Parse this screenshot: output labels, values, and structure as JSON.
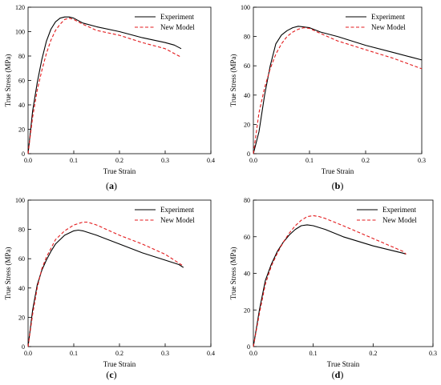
{
  "chart_data": [
    {
      "type": "line",
      "caption_letter": "a",
      "xlabel": "True Strain",
      "ylabel": "True Stress (MPa)",
      "xlim": [
        0,
        0.4
      ],
      "ylim": [
        0,
        120
      ],
      "xticks": [
        0,
        0.1,
        0.2,
        0.3,
        0.4
      ],
      "xtick_labels": [
        "0.0",
        "0.1",
        "0.2",
        "0.3",
        "0.4"
      ],
      "yticks": [
        0,
        20,
        40,
        60,
        80,
        100,
        120
      ],
      "ytick_labels": [
        "0",
        "20",
        "40",
        "60",
        "80",
        "100",
        "120"
      ],
      "legend_position": "top-right",
      "series": [
        {
          "name": "Experiment",
          "color": "#000000",
          "dash": "solid",
          "x": [
            0,
            0.01,
            0.02,
            0.03,
            0.04,
            0.05,
            0.06,
            0.07,
            0.08,
            0.09,
            0.1,
            0.12,
            0.15,
            0.2,
            0.25,
            0.3,
            0.32,
            0.335
          ],
          "y": [
            0,
            35,
            58,
            77,
            92,
            102,
            108,
            111,
            112,
            112,
            111,
            107,
            104,
            100,
            95,
            91,
            89,
            86
          ]
        },
        {
          "name": "New Model",
          "color": "#e31a1c",
          "dash": "dashed",
          "x": [
            0,
            0.01,
            0.02,
            0.03,
            0.04,
            0.05,
            0.06,
            0.07,
            0.08,
            0.09,
            0.1,
            0.12,
            0.15,
            0.2,
            0.25,
            0.3,
            0.335
          ],
          "y": [
            0,
            30,
            52,
            68,
            82,
            93,
            101,
            106,
            110,
            111,
            110,
            106,
            101,
            97,
            91,
            86,
            79
          ]
        }
      ]
    },
    {
      "type": "line",
      "caption_letter": "b",
      "xlabel": "True Strain",
      "ylabel": "True Stress (MPa)",
      "xlim": [
        0,
        0.3
      ],
      "ylim": [
        0,
        100
      ],
      "xticks": [
        0,
        0.1,
        0.2,
        0.3
      ],
      "xtick_labels": [
        "0.0",
        "0.1",
        "0.2",
        "0.3"
      ],
      "yticks": [
        0,
        20,
        40,
        60,
        80,
        100
      ],
      "ytick_labels": [
        "0",
        "20",
        "40",
        "60",
        "80",
        "100"
      ],
      "legend_position": "top-right",
      "series": [
        {
          "name": "Experiment",
          "color": "#000000",
          "dash": "solid",
          "x": [
            0,
            0.01,
            0.02,
            0.03,
            0.04,
            0.05,
            0.06,
            0.07,
            0.08,
            0.09,
            0.1,
            0.12,
            0.15,
            0.2,
            0.25,
            0.28,
            0.3
          ],
          "y": [
            0,
            15,
            40,
            60,
            75,
            81,
            84,
            86,
            87,
            86.5,
            86,
            83,
            80,
            74,
            69,
            66,
            64
          ]
        },
        {
          "name": "New Model",
          "color": "#e31a1c",
          "dash": "dashed",
          "x": [
            0,
            0.01,
            0.02,
            0.03,
            0.04,
            0.05,
            0.06,
            0.07,
            0.08,
            0.09,
            0.1,
            0.12,
            0.15,
            0.2,
            0.25,
            0.3
          ],
          "y": [
            0,
            28,
            45,
            58,
            68,
            75,
            80,
            83,
            85,
            86,
            85.5,
            82,
            77,
            71,
            65,
            58
          ]
        }
      ]
    },
    {
      "type": "line",
      "caption_letter": "c",
      "xlabel": "True Strain",
      "ylabel": "True Stress (MPa)",
      "xlim": [
        0,
        0.4
      ],
      "ylim": [
        0,
        100
      ],
      "xticks": [
        0,
        0.1,
        0.2,
        0.3,
        0.4
      ],
      "xtick_labels": [
        "0.0",
        "0.1",
        "0.2",
        "0.3",
        "0.4"
      ],
      "yticks": [
        0,
        20,
        40,
        60,
        80,
        100
      ],
      "ytick_labels": [
        "0",
        "20",
        "40",
        "60",
        "80",
        "100"
      ],
      "legend_position": "top-right",
      "series": [
        {
          "name": "Experiment",
          "color": "#000000",
          "dash": "solid",
          "x": [
            0,
            0.01,
            0.02,
            0.03,
            0.04,
            0.05,
            0.06,
            0.08,
            0.1,
            0.11,
            0.12,
            0.15,
            0.2,
            0.25,
            0.3,
            0.33,
            0.34
          ],
          "y": [
            0,
            25,
            42,
            52,
            59,
            65,
            70,
            76,
            79,
            79.5,
            79,
            76,
            70,
            64,
            59,
            56,
            54
          ]
        },
        {
          "name": "New Model",
          "color": "#e31a1c",
          "dash": "dashed",
          "x": [
            0,
            0.01,
            0.02,
            0.03,
            0.04,
            0.05,
            0.06,
            0.08,
            0.1,
            0.12,
            0.13,
            0.15,
            0.2,
            0.25,
            0.3,
            0.34
          ],
          "y": [
            0,
            22,
            40,
            53,
            61,
            67,
            73,
            79,
            83,
            85,
            85,
            83,
            76,
            70,
            63,
            55
          ]
        }
      ]
    },
    {
      "type": "line",
      "caption_letter": "d",
      "xlabel": "True Strain",
      "ylabel": "True Stress (MPa)",
      "xlim": [
        0,
        0.3
      ],
      "ylim": [
        0,
        80
      ],
      "xticks": [
        0,
        0.1,
        0.2,
        0.3
      ],
      "xtick_labels": [
        "0.0",
        "0.1",
        "0.2",
        "0.3"
      ],
      "yticks": [
        0,
        20,
        40,
        60,
        80
      ],
      "ytick_labels": [
        "0",
        "20",
        "40",
        "60",
        "80"
      ],
      "legend_position": "top-right",
      "series": [
        {
          "name": "Experiment",
          "color": "#000000",
          "dash": "solid",
          "x": [
            0,
            0.01,
            0.02,
            0.03,
            0.04,
            0.05,
            0.06,
            0.07,
            0.08,
            0.09,
            0.1,
            0.12,
            0.15,
            0.2,
            0.25,
            0.255
          ],
          "y": [
            0,
            20,
            36,
            45,
            52,
            57,
            61,
            64,
            66,
            66.5,
            66,
            64,
            60,
            55,
            51,
            50.5
          ]
        },
        {
          "name": "New Model",
          "color": "#e31a1c",
          "dash": "dashed",
          "x": [
            0,
            0.01,
            0.02,
            0.03,
            0.04,
            0.05,
            0.06,
            0.07,
            0.08,
            0.09,
            0.1,
            0.11,
            0.12,
            0.15,
            0.2,
            0.25,
            0.255
          ],
          "y": [
            0,
            18,
            34,
            44,
            51,
            57,
            62,
            66,
            69,
            71,
            71.5,
            71,
            70,
            66,
            59,
            52,
            50.5
          ]
        }
      ]
    }
  ]
}
